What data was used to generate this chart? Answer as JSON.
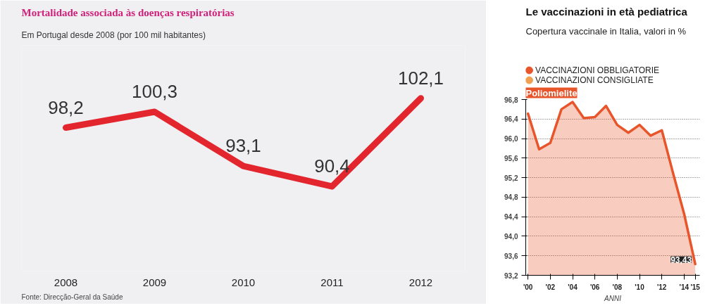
{
  "chart_data": [
    {
      "type": "line",
      "title": "Mortalidade associada às doenças respiratórias",
      "subtitle": "Em Portugal desde 2008 (por 100 mil habitantes)",
      "categories": [
        "2008",
        "2009",
        "2010",
        "2011",
        "2012"
      ],
      "series": [
        {
          "color": "#e3262d",
          "values": [
            98.2,
            100.3,
            93.1,
            90.4,
            102.1
          ],
          "value_labels": [
            "98,2",
            "100,3",
            "93,1",
            "90,4",
            "102,1"
          ]
        }
      ],
      "tick_labels": "x",
      "grid": false,
      "legend": false,
      "marker": "none",
      "annotations": [
        "Fonte: Direcção-Geral da Saúde"
      ]
    },
    {
      "type": "area",
      "title": "Le vaccinazioni in età pediatrica",
      "subtitle": "Copertura vaccinale in Italia, valori in %",
      "xlabel": "ANNI",
      "x": [
        2000,
        2001,
        2002,
        2003,
        2004,
        2005,
        2006,
        2007,
        2008,
        2009,
        2010,
        2011,
        2012,
        2013,
        2014,
        2015
      ],
      "series": [
        {
          "name": "VACCINAZIONI OBBLIGATORIE",
          "color": "#e8552b",
          "values": [
            96.51,
            95.78,
            95.91,
            96.6,
            96.75,
            96.42,
            96.44,
            96.67,
            96.28,
            96.12,
            96.28,
            96.06,
            96.17,
            95.3,
            94.46,
            93.43
          ],
          "value_labels": [
            null,
            null,
            null,
            null,
            null,
            null,
            null,
            null,
            null,
            null,
            null,
            null,
            null,
            null,
            null,
            "93,43"
          ]
        },
        {
          "name": "VACCINAZIONI CONSIGLIATE",
          "color": "#f0a050",
          "values": [
            null,
            null,
            null,
            null,
            null,
            null,
            null,
            null,
            null,
            null,
            null,
            null,
            null,
            null,
            null,
            null
          ]
        }
      ],
      "xlim": [
        1999.8,
        2015.4
      ],
      "ylim": [
        93.2,
        96.8
      ],
      "xticks": [
        {
          "value": 2000,
          "label": "'00"
        },
        {
          "value": 2002,
          "label": "'02"
        },
        {
          "value": 2004,
          "label": "'04"
        },
        {
          "value": 2006,
          "label": "'06"
        },
        {
          "value": 2008,
          "label": "'08"
        },
        {
          "value": 2010,
          "label": "'10"
        },
        {
          "value": 2012,
          "label": "'12"
        },
        {
          "value": 2014,
          "label": "'14"
        },
        {
          "value": 2015,
          "label": "'15"
        }
      ],
      "yticks": [
        {
          "value": 93.2,
          "label": "93,2"
        },
        {
          "value": 93.6,
          "label": "93,6"
        },
        {
          "value": 94.0,
          "label": "94,0"
        },
        {
          "value": 94.4,
          "label": "94,4"
        },
        {
          "value": 94.8,
          "label": "94,8"
        },
        {
          "value": 95.2,
          "label": "95,2"
        },
        {
          "value": 95.6,
          "label": "95,6"
        },
        {
          "value": 96.0,
          "label": "96,0"
        },
        {
          "value": 96.4,
          "label": "96,4"
        },
        {
          "value": 96.8,
          "label": "96,8"
        }
      ],
      "grid": "y",
      "legend": "top",
      "marker": "none",
      "annotations": [
        "Poliomielite"
      ]
    }
  ]
}
